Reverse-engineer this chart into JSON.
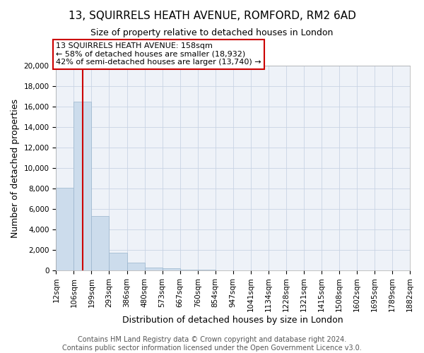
{
  "title": "13, SQUIRRELS HEATH AVENUE, ROMFORD, RM2 6AD",
  "subtitle": "Size of property relative to detached houses in London",
  "xlabel": "Distribution of detached houses by size in London",
  "ylabel": "Number of detached properties",
  "bar_values": [
    8100,
    16500,
    5300,
    1750,
    750,
    250,
    175,
    100,
    50,
    0,
    0,
    0,
    0,
    0,
    0,
    0,
    0,
    0,
    0,
    0
  ],
  "bar_labels": [
    "12sqm",
    "106sqm",
    "199sqm",
    "293sqm",
    "386sqm",
    "480sqm",
    "573sqm",
    "667sqm",
    "760sqm",
    "854sqm",
    "947sqm",
    "1041sqm",
    "1134sqm",
    "1228sqm",
    "1321sqm",
    "1415sqm",
    "1508sqm",
    "1602sqm",
    "1695sqm",
    "1789sqm",
    "1882sqm"
  ],
  "bar_color": "#ccdcec",
  "bar_edge_color": "#99b4cc",
  "red_line_x": 1.5,
  "marker_color": "#cc0000",
  "ylim": [
    0,
    20000
  ],
  "yticks": [
    0,
    2000,
    4000,
    6000,
    8000,
    10000,
    12000,
    14000,
    16000,
    18000,
    20000
  ],
  "annotation_lines": [
    "13 SQUIRRELS HEATH AVENUE: 158sqm",
    "← 58% of detached houses are smaller (18,932)",
    "42% of semi-detached houses are larger (13,740) →"
  ],
  "footer_line1": "Contains HM Land Registry data © Crown copyright and database right 2024.",
  "footer_line2": "Contains public sector information licensed under the Open Government Licence v3.0.",
  "title_fontsize": 11,
  "subtitle_fontsize": 9,
  "axis_label_fontsize": 9,
  "tick_fontsize": 7.5,
  "annotation_fontsize": 8,
  "footer_fontsize": 7,
  "bg_color": "#eef2f8"
}
